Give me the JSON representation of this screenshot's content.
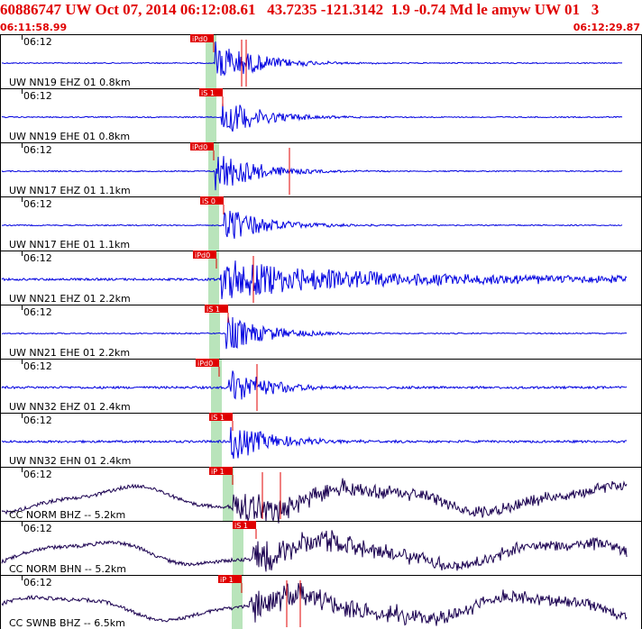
{
  "header": {
    "title": "60886747 UW Oct 07, 2014 06:12:08.61   43.7235 -121.3142  1.9 -0.74 Md le amyw UW 01   3",
    "start_time": "06:11:58.99",
    "end_time": "06:12:29.87"
  },
  "colors": {
    "header_text": "#e00000",
    "trace_local": "#0000e0",
    "trace_broadband": "#1a0050",
    "pick_box": "#e00000",
    "pick_window": "#b9e4bb",
    "panel_border": "#000000"
  },
  "panels": [
    {
      "tick": "06:12",
      "label": "UW NN19 EHZ 01 0.8km",
      "pick": "iPd0",
      "style": "local"
    },
    {
      "tick": "06:12",
      "label": "UW NN19 EHE 01 0.8km",
      "pick": "iS 1",
      "style": "local"
    },
    {
      "tick": "06:12",
      "label": "UW NN17 EHZ 01 1.1km",
      "pick": "iPd0",
      "style": "local"
    },
    {
      "tick": "06:12",
      "label": "UW NN17 EHE 01 1.1km",
      "pick": "iS 0",
      "style": "local"
    },
    {
      "tick": "06:12",
      "label": "UW NN21 EHZ 01 2.2km",
      "pick": "iPd0",
      "style": "local"
    },
    {
      "tick": "06:12",
      "label": "UW NN21 EHE 01 2.2km",
      "pick": "iS 1",
      "style": "local"
    },
    {
      "tick": "06:12",
      "label": "UW NN32 EHZ 01 2.4km",
      "pick": "iPd0",
      "style": "local"
    },
    {
      "tick": "06:12",
      "label": "UW NN32 EHN 01 2.4km",
      "pick": "iS 1",
      "style": "local"
    },
    {
      "tick": "06:12",
      "label": "CC NORM BHZ -- 5.2km",
      "pick": "iP 1",
      "style": "broadband"
    },
    {
      "tick": "06:12",
      "label": "CC NORM BHN -- 5.2km",
      "pick": "iS 1",
      "style": "broadband"
    },
    {
      "tick": "06:12",
      "label": "CC SWNB BHZ -- 6.5km",
      "pick": "iP 1",
      "style": "broadband"
    }
  ]
}
